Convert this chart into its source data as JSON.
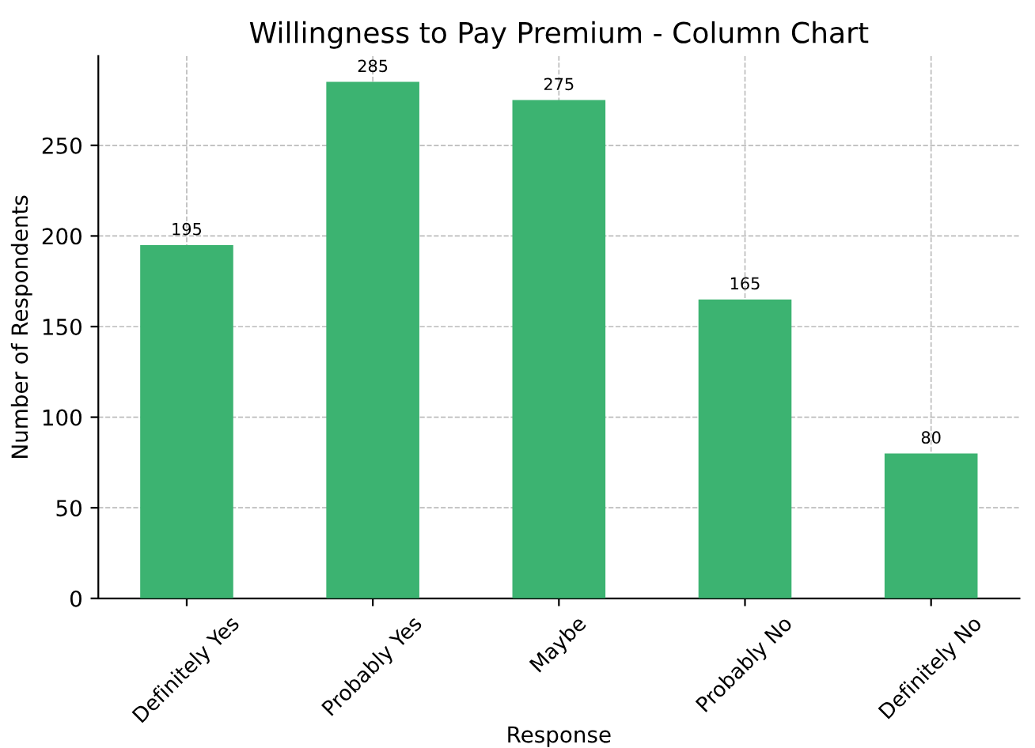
{
  "chart_data": {
    "type": "bar",
    "title": "Willingness to Pay Premium - Column Chart",
    "xlabel": "Response",
    "ylabel": "Number of Respondents",
    "categories": [
      "Definitely Yes",
      "Probably Yes",
      "Maybe",
      "Probably No",
      "Definitely No"
    ],
    "values": [
      195,
      285,
      275,
      165,
      80
    ],
    "color": "#3cb371",
    "ylim": [
      0,
      299.25
    ],
    "yticks": [
      0,
      50,
      100,
      150,
      200,
      250
    ],
    "grid": true,
    "data_labels": true
  }
}
